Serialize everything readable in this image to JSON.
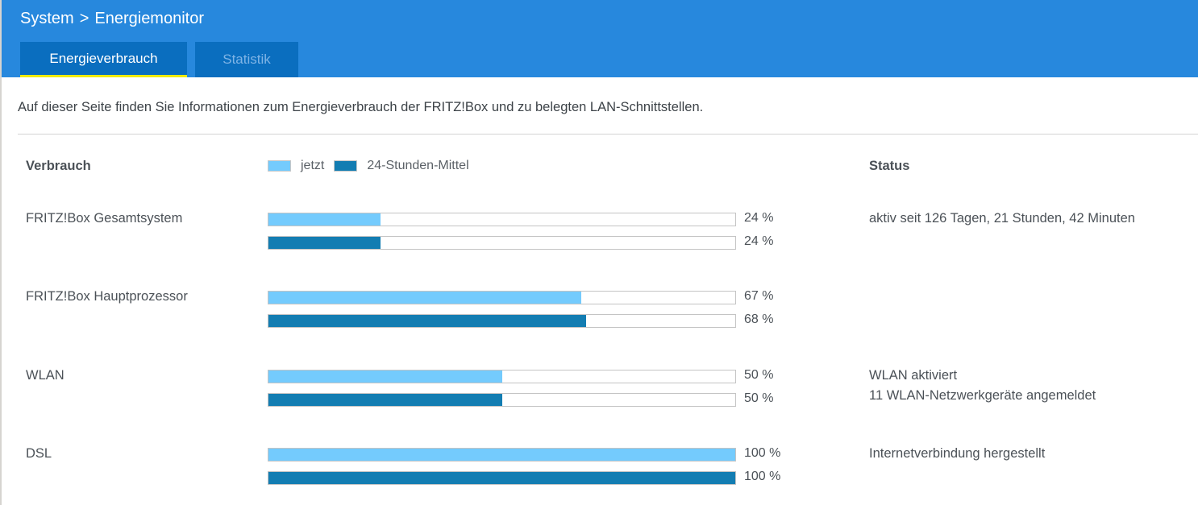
{
  "header": {
    "breadcrumb": [
      "System",
      "Energiemonitor"
    ],
    "breadcrumb_separator": ">",
    "tabs": [
      {
        "label": "Energieverbrauch",
        "active": true
      },
      {
        "label": "Statistik",
        "active": false
      }
    ]
  },
  "intro_text": "Auf dieser Seite finden Sie Informationen zum Energieverbrauch der FRITZ!Box und zu belegten LAN-Schnittstellen.",
  "table": {
    "col_consumption": "Verbrauch",
    "col_status": "Status",
    "legend": [
      {
        "label": "jetzt",
        "color": "#74cbfd"
      },
      {
        "label": "24-Stunden-Mittel",
        "color": "#137db2"
      }
    ],
    "rows": [
      {
        "label": "FRITZ!Box Gesamtsystem",
        "now": 24,
        "avg": 24,
        "now_text": "24 %",
        "avg_text": "24 %",
        "status": [
          "aktiv seit 126 Tagen, 21 Stunden, 42 Minuten"
        ]
      },
      {
        "label": "FRITZ!Box Hauptprozessor",
        "now": 67,
        "avg": 68,
        "now_text": "67 %",
        "avg_text": "68 %",
        "status": []
      },
      {
        "label": "WLAN",
        "now": 50,
        "avg": 50,
        "now_text": "50 %",
        "avg_text": "50 %",
        "status": [
          "WLAN aktiviert",
          "11 WLAN-Netzwerkgeräte angemeldet"
        ]
      },
      {
        "label": "DSL",
        "now": 100,
        "avg": 100,
        "now_text": "100 %",
        "avg_text": "100 %",
        "status": [
          "Internetverbindung hergestellt"
        ]
      }
    ]
  }
}
